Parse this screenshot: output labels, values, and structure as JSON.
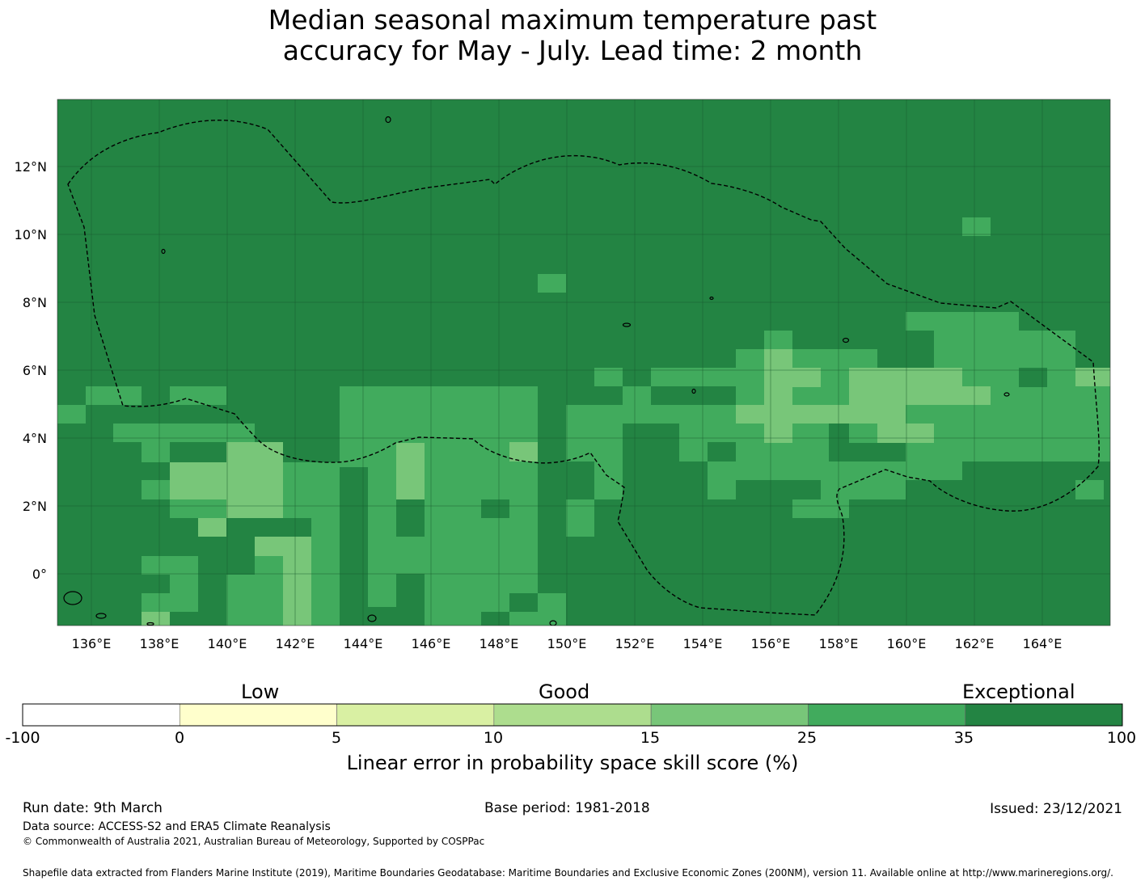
{
  "title_line1": "Median seasonal maximum temperature past",
  "title_line2": "accuracy for May - July. Lead time: 2 month",
  "map": {
    "lon_ticks": [
      "136°E",
      "138°E",
      "140°E",
      "142°E",
      "144°E",
      "146°E",
      "148°E",
      "150°E",
      "152°E",
      "154°E",
      "156°E",
      "158°E",
      "160°E",
      "162°E",
      "164°E"
    ],
    "lat_ticks": [
      "12°N",
      "10°N",
      "8°N",
      "6°N",
      "4°N",
      "2°N",
      "0°"
    ],
    "extent": {
      "lon_min": 134,
      "lon_max": 166,
      "lat_min": -1.6,
      "lat_max": 14
    },
    "grid_step_deg": 0.8333,
    "default_class": "exceptional",
    "lines": "dashed EEZ boundaries, black coastlines",
    "colors": {
      "exceptional": "#238443",
      "very_good": "#41ab5d",
      "good": "#78c679",
      "fair": "#addd8e",
      "low_plus": "#d9f0a3",
      "low": "#ffffcc",
      "none": "#ffffff"
    }
  },
  "colorbar": {
    "category_labels": [
      "Low",
      "Good",
      "Exceptional"
    ],
    "ticks": [
      "-100",
      "0",
      "5",
      "10",
      "15",
      "25",
      "35",
      "100"
    ],
    "colors": [
      "#ffffff",
      "#ffffcc",
      "#d9f0a3",
      "#addd8e",
      "#78c679",
      "#41ab5d",
      "#238443"
    ],
    "label": "Linear error in probability space skill score (%)"
  },
  "footer": {
    "run_date": "Run date: 9th March",
    "base_period": "Base period: 1981-2018",
    "issued": "Issued: 23/12/2021",
    "data_source": "Data source: ACCESS-S2 and ERA5 Climate Reanalysis",
    "copyright": "© Commonwealth of Australia 2021, Australian Bureau of Meteorology, Supported by COSPPac",
    "shapefile": "Shapefile data extracted from Flanders Marine Institute (2019), Maritime Boundaries Geodatabase: Maritime Boundaries and Exclusive Economic Zones (200NM), version 11. Available online at http://www.marineregions.org/."
  }
}
